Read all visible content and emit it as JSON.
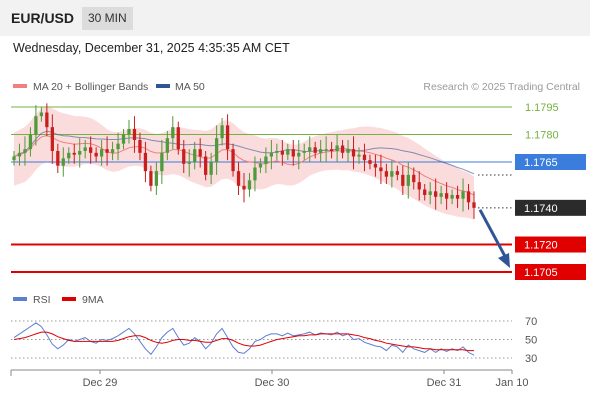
{
  "header": {
    "pair": "EUR/USD",
    "timeframe": "30 MIN",
    "timestamp": "Wednesday, December 31, 2025 4:35:35 AM CET"
  },
  "colors": {
    "bollinger": "#f08080",
    "ma50": "#2f5597",
    "resistance": "#76b041",
    "pivot": "#3b7ddd",
    "support": "#e00000",
    "bull": "#4f9a3a",
    "bear": "#c81e1e",
    "rsi": "#5b7fd1",
    "rsi_ma": "#e00000"
  },
  "chart_data": [
    {
      "type": "candlestick",
      "legend": [
        "MA 20 + Bollinger Bands",
        "MA 50"
      ],
      "credit": "Research © 2025 Trading Central",
      "x_ticks": [
        "Dec 29",
        "Dec 30",
        "Dec 31",
        "Jan 10"
      ],
      "levels": [
        {
          "value": 1.1795,
          "label": "1.1795",
          "kind": "resistance"
        },
        {
          "value": 1.178,
          "label": "1.1780",
          "kind": "resistance"
        },
        {
          "value": 1.1765,
          "label": "1.1765",
          "kind": "pivot"
        },
        {
          "value": 1.174,
          "label": "1.1740",
          "kind": "current"
        },
        {
          "value": 1.172,
          "label": "1.1720",
          "kind": "support"
        },
        {
          "value": 1.1705,
          "label": "1.1705",
          "kind": "support"
        }
      ],
      "current_price": 1.174,
      "arrow_target": 1.1705,
      "close_series": [
        1.1768,
        1.177,
        1.1772,
        1.178,
        1.179,
        1.1792,
        1.1784,
        1.1771,
        1.1763,
        1.1767,
        1.177,
        1.1769,
        1.1771,
        1.1773,
        1.177,
        1.1768,
        1.1772,
        1.177,
        1.1772,
        1.1775,
        1.178,
        1.1783,
        1.1777,
        1.177,
        1.176,
        1.1752,
        1.176,
        1.177,
        1.1778,
        1.1784,
        1.1772,
        1.1764,
        1.1765,
        1.1772,
        1.1768,
        1.1758,
        1.1765,
        1.1778,
        1.1785,
        1.1772,
        1.176,
        1.1752,
        1.175,
        1.1755,
        1.1762,
        1.1764,
        1.1768,
        1.177,
        1.1771,
        1.1769,
        1.1772,
        1.1768,
        1.177,
        1.1771,
        1.1773,
        1.177,
        1.1772,
        1.1772,
        1.1771,
        1.1774,
        1.177,
        1.1772,
        1.1768,
        1.1769,
        1.1766,
        1.1764,
        1.1762,
        1.176,
        1.1757,
        1.176,
        1.1758,
        1.1752,
        1.1758,
        1.1754,
        1.175,
        1.1747,
        1.1749,
        1.1746,
        1.1748,
        1.1745,
        1.1747,
        1.1745,
        1.1749,
        1.1743,
        1.174
      ]
    },
    {
      "type": "line",
      "legend": [
        "RSI",
        "9MA"
      ],
      "y_ticks": [
        70,
        50,
        30
      ],
      "rsi": [
        52,
        56,
        60,
        64,
        68,
        64,
        55,
        45,
        40,
        44,
        50,
        48,
        50,
        52,
        48,
        46,
        50,
        49,
        51,
        54,
        58,
        62,
        56,
        48,
        40,
        34,
        42,
        52,
        58,
        62,
        52,
        44,
        46,
        52,
        48,
        40,
        46,
        56,
        62,
        52,
        42,
        36,
        35,
        40,
        48,
        50,
        54,
        56,
        56,
        54,
        57,
        54,
        55,
        56,
        58,
        55,
        57,
        56,
        55,
        58,
        54,
        56,
        50,
        51,
        47,
        45,
        43,
        42,
        38,
        44,
        42,
        36,
        44,
        40,
        38,
        36,
        40,
        36,
        40,
        37,
        40,
        38,
        42,
        36,
        33
      ],
      "rsi_ma": [
        50,
        51,
        52,
        54,
        56,
        58,
        58,
        56,
        53,
        51,
        49,
        48,
        48,
        48,
        48,
        48,
        48,
        48,
        48,
        49,
        51,
        53,
        54,
        54,
        52,
        49,
        47,
        46,
        47,
        49,
        50,
        50,
        49,
        49,
        48,
        47,
        47,
        49,
        51,
        51,
        49,
        46,
        44,
        43,
        43,
        44,
        46,
        48,
        50,
        51,
        52,
        53,
        54,
        54,
        55,
        55,
        56,
        56,
        56,
        56,
        56,
        56,
        55,
        54,
        52,
        51,
        49,
        48,
        46,
        45,
        44,
        43,
        42,
        42,
        41,
        40,
        40,
        39,
        39,
        39,
        39,
        39,
        39,
        38,
        38
      ]
    }
  ]
}
